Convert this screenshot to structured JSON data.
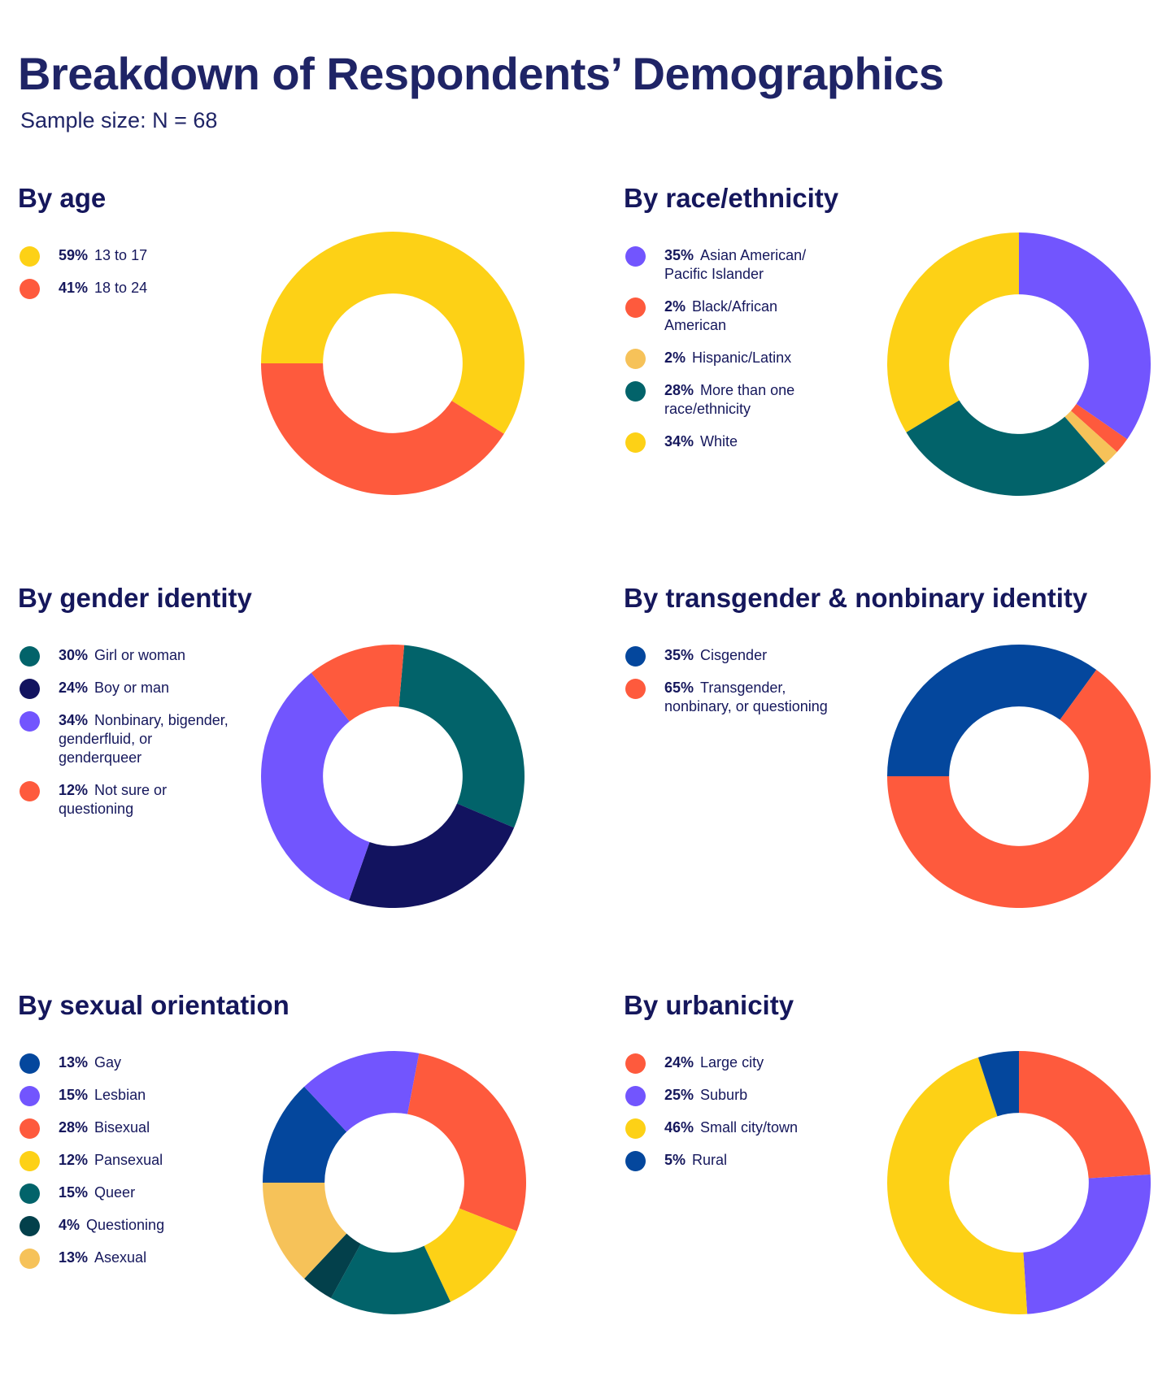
{
  "title": "Breakdown of Respondents’ Demographics",
  "subtitle": "Sample size: N = 68",
  "colors": {
    "yellow": "#fdd116",
    "orange_red": "#fe5a3d",
    "purple": "#7255fe",
    "teal": "#02636a",
    "navy": "#12135f",
    "blue": "#04479d",
    "light_orange": "#f6c259",
    "dark_teal": "#03404b"
  },
  "chart_data": [
    {
      "type": "pie",
      "title": "By age",
      "hole": 0.53,
      "start_angle_deg": 180,
      "direction": "clockwise",
      "slices": [
        {
          "label": "13 to 17",
          "pct_label": "59%",
          "value": 59,
          "color": "#fdd116"
        },
        {
          "label": "18 to 24",
          "pct_label": "41%",
          "value": 41,
          "color": "#fe5a3d"
        }
      ]
    },
    {
      "type": "pie",
      "title": "By race/ethnicity",
      "hole": 0.53,
      "start_angle_deg": 270,
      "direction": "clockwise",
      "slices": [
        {
          "label": "Asian American/ Pacific Islander",
          "pct_label": "35%",
          "value": 35,
          "color": "#7255fe"
        },
        {
          "label": "Black/African American",
          "pct_label": "2%",
          "value": 2,
          "color": "#fe5a3d"
        },
        {
          "label": "Hispanic/Latinx",
          "pct_label": "2%",
          "value": 2,
          "color": "#f6c259"
        },
        {
          "label": "More than one race/ethnicity",
          "pct_label": "28%",
          "value": 28,
          "color": "#02636a"
        },
        {
          "label": "White",
          "pct_label": "34%",
          "value": 34,
          "color": "#fdd116"
        }
      ]
    },
    {
      "type": "pie",
      "title": "By gender identity",
      "hole": 0.53,
      "start_angle_deg": 275,
      "direction": "clockwise",
      "slices": [
        {
          "label": "Girl or woman",
          "pct_label": "30%",
          "value": 30,
          "color": "#02636a"
        },
        {
          "label": "Boy or man",
          "pct_label": "24%",
          "value": 24,
          "color": "#12135f"
        },
        {
          "label": "Nonbinary, bigender, genderfluid, or genderqueer",
          "pct_label": "34%",
          "value": 34,
          "color": "#7255fe"
        },
        {
          "label": "Not sure or questioning",
          "pct_label": "12%",
          "value": 12,
          "color": "#fe5a3d"
        }
      ]
    },
    {
      "type": "pie",
      "title": "By transgender & nonbinary identity",
      "hole": 0.53,
      "start_angle_deg": 180,
      "direction": "clockwise",
      "slices": [
        {
          "label": "Cisgender",
          "pct_label": "35%",
          "value": 35,
          "color": "#04479d"
        },
        {
          "label": "Transgender, nonbinary, or questioning",
          "pct_label": "65%",
          "value": 65,
          "color": "#fe5a3d"
        }
      ]
    },
    {
      "type": "pie",
      "title": "By sexual orientation",
      "hole": 0.53,
      "start_angle_deg": 180,
      "direction": "clockwise",
      "slices": [
        {
          "label": "Gay",
          "pct_label": "13%",
          "value": 13,
          "color": "#04479d"
        },
        {
          "label": "Lesbian",
          "pct_label": "15%",
          "value": 15,
          "color": "#7255fe"
        },
        {
          "label": "Bisexual",
          "pct_label": "28%",
          "value": 28,
          "color": "#fe5a3d"
        },
        {
          "label": "Pansexual",
          "pct_label": "12%",
          "value": 12,
          "color": "#fdd116"
        },
        {
          "label": "Queer",
          "pct_label": "15%",
          "value": 15,
          "color": "#02636a"
        },
        {
          "label": "Questioning",
          "pct_label": "4%",
          "value": 4,
          "color": "#03404b"
        },
        {
          "label": "Asexual",
          "pct_label": "13%",
          "value": 13,
          "color": "#f6c259"
        }
      ]
    },
    {
      "type": "pie",
      "title": "By urbanicity",
      "hole": 0.53,
      "start_angle_deg": 270,
      "direction": "clockwise",
      "slices": [
        {
          "label": "Large city",
          "pct_label": "24%",
          "value": 24,
          "color": "#fe5a3d"
        },
        {
          "label": "Suburb",
          "pct_label": "25%",
          "value": 25,
          "color": "#7255fe"
        },
        {
          "label": "Small city/town",
          "pct_label": "46%",
          "value": 46,
          "color": "#fdd116"
        },
        {
          "label": "Rural",
          "pct_label": "5%",
          "value": 5,
          "color": "#04479d"
        }
      ]
    }
  ]
}
